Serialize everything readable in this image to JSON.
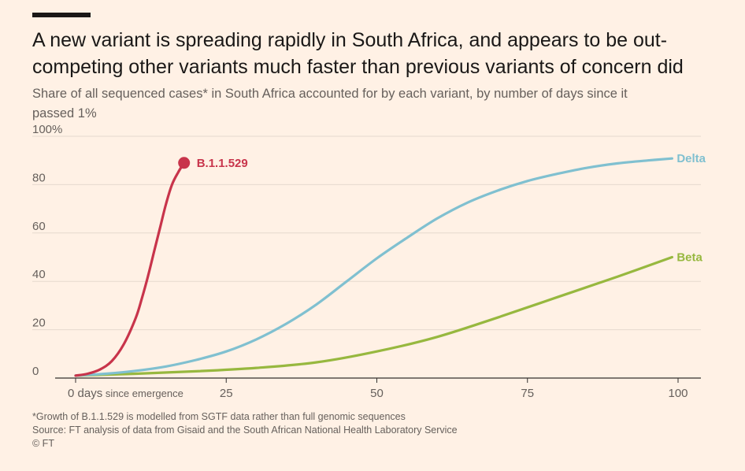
{
  "title": "A new variant is spreading rapidly in South Africa, and appears to be out-competing other variants much faster than previous variants of concern did",
  "subtitle": "Share of all sequenced cases* in South Africa accounted for by each variant, by number of days since it passed 1%",
  "footnote": "*Growth of B.1.1.529 is modelled from SGTF data rather than full genomic sequences",
  "source": "Source: FT analysis of data from Gisaid and the South African National Health Laboratory Service",
  "credit": "© FT",
  "colors": {
    "b11529": "#c8344b",
    "delta": "#80c0d0",
    "beta": "#97b83f",
    "grid": "#e6d9ce",
    "axis": "#33302e"
  },
  "chart_data": {
    "type": "line",
    "xlim": [
      0,
      100
    ],
    "ylim": [
      0,
      100
    ],
    "x_ticks": [
      {
        "value": 0,
        "label": "0 days",
        "suffix": "since emergence"
      },
      {
        "value": 25,
        "label": "25"
      },
      {
        "value": 50,
        "label": "50"
      },
      {
        "value": 75,
        "label": "75"
      },
      {
        "value": 100,
        "label": "100"
      }
    ],
    "y_ticks": [
      {
        "value": 0,
        "label": "0"
      },
      {
        "value": 20,
        "label": "20"
      },
      {
        "value": 40,
        "label": "40"
      },
      {
        "value": 60,
        "label": "60"
      },
      {
        "value": 80,
        "label": "80"
      },
      {
        "value": 100,
        "label": "100%"
      }
    ],
    "grid": true,
    "series": [
      {
        "name": "B.1.1.529",
        "color": "#c8344b",
        "end_marker": true,
        "points": [
          [
            0,
            1
          ],
          [
            2,
            1.8
          ],
          [
            4,
            3.5
          ],
          [
            6,
            7
          ],
          [
            8,
            14
          ],
          [
            10,
            25
          ],
          [
            11,
            33
          ],
          [
            12,
            42
          ],
          [
            13,
            52
          ],
          [
            14,
            62
          ],
          [
            15,
            72
          ],
          [
            16,
            80
          ],
          [
            17,
            85
          ],
          [
            18,
            89
          ]
        ]
      },
      {
        "name": "Delta",
        "color": "#80c0d0",
        "points": [
          [
            0,
            1
          ],
          [
            5,
            1.8
          ],
          [
            10,
            3
          ],
          [
            15,
            4.8
          ],
          [
            20,
            7.5
          ],
          [
            25,
            11
          ],
          [
            30,
            16
          ],
          [
            35,
            22.5
          ],
          [
            40,
            30.5
          ],
          [
            45,
            40
          ],
          [
            50,
            49.5
          ],
          [
            55,
            58
          ],
          [
            60,
            66
          ],
          [
            65,
            72.5
          ],
          [
            70,
            77.5
          ],
          [
            75,
            81.5
          ],
          [
            80,
            84.5
          ],
          [
            85,
            87
          ],
          [
            90,
            88.8
          ],
          [
            95,
            90
          ],
          [
            99,
            90.8
          ]
        ]
      },
      {
        "name": "Beta",
        "color": "#97b83f",
        "points": [
          [
            0,
            1
          ],
          [
            10,
            1.8
          ],
          [
            20,
            2.8
          ],
          [
            30,
            4.2
          ],
          [
            40,
            6.5
          ],
          [
            50,
            11
          ],
          [
            60,
            17
          ],
          [
            70,
            25
          ],
          [
            80,
            33.5
          ],
          [
            90,
            42
          ],
          [
            99,
            50
          ]
        ]
      }
    ]
  }
}
